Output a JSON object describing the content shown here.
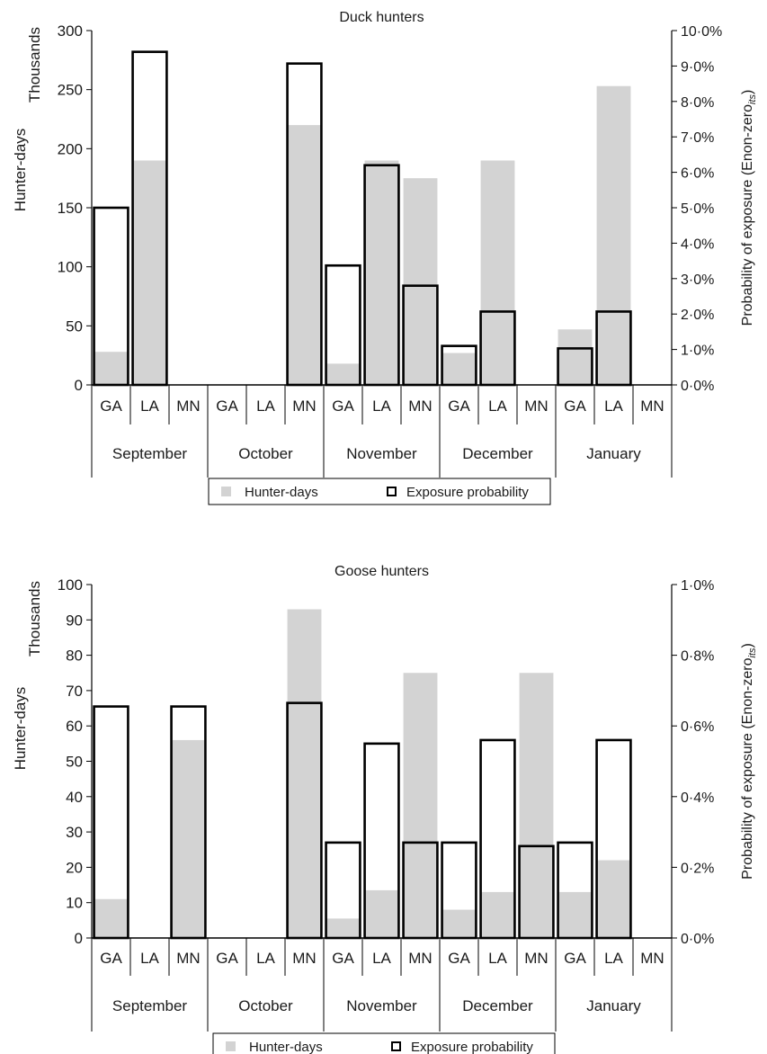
{
  "chart_data": [
    {
      "type": "bar",
      "title": "Duck hunters",
      "ylabel_top": "Thousands",
      "ylabel": "Hunter-days",
      "ylabel2": "Probability of exposure (Enon-zero",
      "ylabel2_sub": "its",
      "ylabel2_close": ")",
      "ylim": [
        0,
        300
      ],
      "yticks": [
        "0",
        "50",
        "100",
        "150",
        "200",
        "250",
        "300"
      ],
      "ylim2": [
        0,
        10
      ],
      "yticks2": [
        "0·0%",
        "1·0%",
        "2·0%",
        "3·0%",
        "4·0%",
        "5·0%",
        "6·0%",
        "7·0%",
        "8·0%",
        "9·0%",
        "10·0%"
      ],
      "months": [
        "September",
        "October",
        "November",
        "December",
        "January"
      ],
      "states": [
        "GA",
        "LA",
        "MN"
      ],
      "categories": [
        "GA",
        "LA",
        "MN",
        "GA",
        "LA",
        "MN",
        "GA",
        "LA",
        "MN",
        "GA",
        "LA",
        "MN",
        "GA",
        "LA",
        "MN"
      ],
      "series": [
        {
          "name": "Hunter-days",
          "color": "#d3d3d3",
          "values": [
            28,
            190,
            null,
            null,
            null,
            220,
            18,
            190,
            175,
            27,
            190,
            null,
            47,
            253,
            null
          ]
        },
        {
          "name": "Exposure probability",
          "color": "#000000",
          "values": [
            5.0,
            9.4,
            null,
            null,
            null,
            9.07,
            3.37,
            6.2,
            2.8,
            1.1,
            2.07,
            null,
            1.03,
            2.07,
            null
          ]
        }
      ],
      "legend": {
        "position": "bottom",
        "items": [
          "Hunter-days",
          "Exposure probability"
        ]
      }
    },
    {
      "type": "bar",
      "title": "Goose hunters",
      "ylabel_top": "Thousands",
      "ylabel": "Hunter-days",
      "ylabel2": "Probability of exposure (Enon-zero",
      "ylabel2_sub": "its",
      "ylabel2_close": ")",
      "ylim": [
        0,
        100
      ],
      "yticks": [
        "0",
        "10",
        "20",
        "30",
        "40",
        "50",
        "60",
        "70",
        "80",
        "90",
        "100"
      ],
      "ylim2": [
        0,
        1.0
      ],
      "yticks2": [
        "0·0%",
        "0·2%",
        "0·4%",
        "0·6%",
        "0·8%",
        "1·0%"
      ],
      "months": [
        "September",
        "October",
        "November",
        "December",
        "January"
      ],
      "states": [
        "GA",
        "LA",
        "MN"
      ],
      "categories": [
        "GA",
        "LA",
        "MN",
        "GA",
        "LA",
        "MN",
        "GA",
        "LA",
        "MN",
        "GA",
        "LA",
        "MN",
        "GA",
        "LA",
        "MN"
      ],
      "series": [
        {
          "name": "Hunter-days",
          "color": "#d3d3d3",
          "values": [
            11,
            null,
            56,
            null,
            null,
            93,
            5.5,
            13.5,
            75,
            8,
            13,
            75,
            13,
            22,
            null
          ]
        },
        {
          "name": "Exposure probability",
          "color": "#000000",
          "values": [
            0.655,
            null,
            0.655,
            null,
            null,
            0.665,
            0.27,
            0.55,
            0.27,
            0.27,
            0.56,
            0.26,
            0.27,
            0.56,
            null
          ]
        }
      ],
      "legend": {
        "position": "bottom",
        "items": [
          "Hunter-days",
          "Exposure probability"
        ]
      }
    }
  ]
}
